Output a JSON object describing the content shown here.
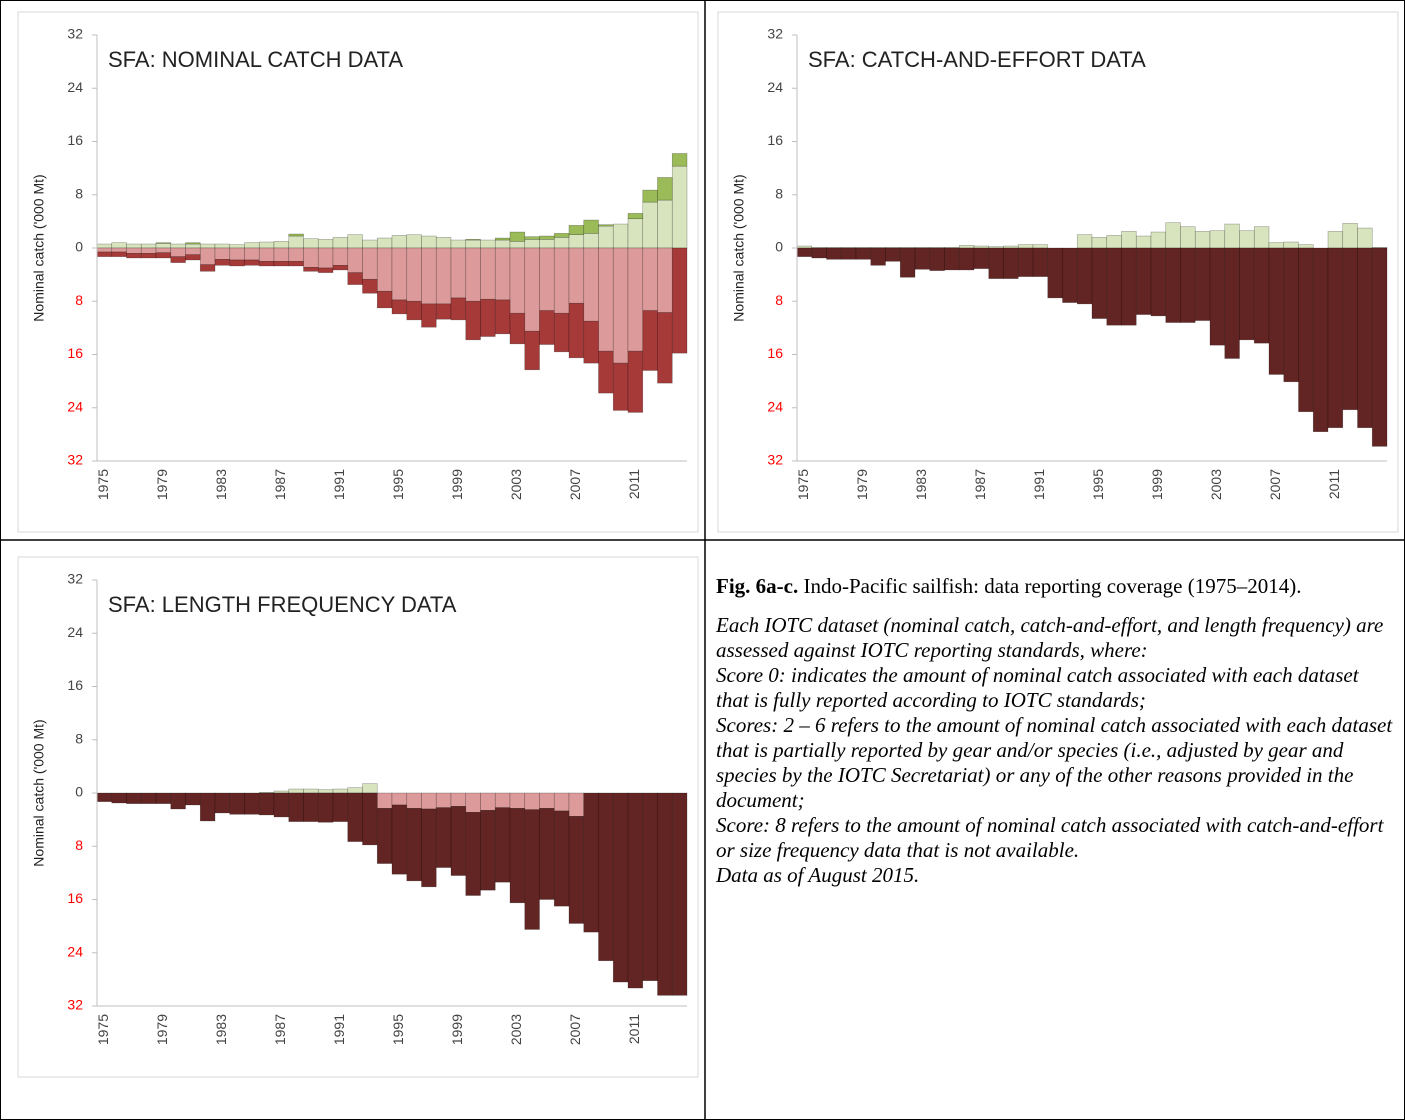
{
  "chart_data": [
    {
      "type": "bar",
      "title": "SFA: NOMINAL CATCH DATA",
      "y_label": "Nominal catch ('000 Mt)",
      "categories": [
        "1975",
        null,
        null,
        null,
        "1979",
        null,
        null,
        null,
        "1983",
        null,
        null,
        null,
        "1987",
        null,
        null,
        null,
        "1991",
        null,
        null,
        null,
        "1995",
        null,
        null,
        null,
        "1999",
        null,
        null,
        null,
        "2003",
        null,
        null,
        null,
        "2007",
        null,
        null,
        null,
        "2011",
        null,
        null,
        null
      ],
      "ylim": [
        -32,
        32
      ],
      "yticks": [
        {
          "value": -32,
          "label": "32"
        },
        {
          "value": -24,
          "label": "24"
        },
        {
          "value": -16,
          "label": "16"
        },
        {
          "value": -8,
          "label": "8"
        },
        0,
        8,
        16,
        24,
        32
      ],
      "negative_tick_color": "#ff0000",
      "stacked": true,
      "series": [
        {
          "color": "#d7e4bd",
          "values": [
            0.6,
            0.8,
            0.6,
            0.6,
            0.7,
            0.6,
            0.6,
            0.6,
            0.6,
            0.5,
            0.8,
            0.9,
            1.0,
            1.8,
            1.4,
            1.3,
            1.6,
            2.0,
            1.2,
            1.5,
            1.9,
            2.0,
            1.8,
            1.6,
            1.2,
            1.2,
            1.2,
            1.2,
            1.0,
            1.3,
            1.3,
            1.6,
            2.0,
            2.2,
            3.3,
            3.6,
            4.4,
            6.9,
            7.2,
            12.3
          ]
        },
        {
          "color": "#9bbb59",
          "values": [
            0,
            0,
            0,
            0,
            0.1,
            0,
            0.2,
            0,
            0,
            0,
            0,
            0,
            0,
            0.3,
            0,
            0,
            0,
            0,
            0,
            0,
            0,
            0,
            0,
            0,
            0,
            0.1,
            0,
            0.3,
            1.4,
            0.4,
            0.5,
            0.6,
            1.4,
            2.0,
            0.2,
            0,
            0.8,
            1.8,
            3.4,
            1.9
          ]
        },
        {
          "color": "#dc9a9a",
          "values": [
            -0.6,
            -0.6,
            -0.8,
            -0.8,
            -0.7,
            -1.3,
            -1.0,
            -2.5,
            -1.7,
            -1.8,
            -1.8,
            -2.0,
            -2.0,
            -2.0,
            -2.9,
            -3.0,
            -2.6,
            -3.7,
            -4.7,
            -6.5,
            -7.8,
            -8.0,
            -8.4,
            -8.4,
            -7.5,
            -8.0,
            -7.7,
            -7.8,
            -9.8,
            -12.5,
            -9.4,
            -9.8,
            -8.3,
            -11.0,
            -15.5,
            -17.3,
            -15.5,
            -9.4,
            -9.7,
            0
          ]
        },
        {
          "color": "#a63a38",
          "values": [
            -0.7,
            -0.7,
            -0.7,
            -0.7,
            -0.8,
            -0.9,
            -0.8,
            -1.0,
            -0.9,
            -0.9,
            -0.8,
            -0.7,
            -0.7,
            -0.7,
            -0.6,
            -0.7,
            -0.7,
            -1.8,
            -2.1,
            -2.5,
            -2.1,
            -2.8,
            -3.5,
            -2.3,
            -3.3,
            -5.8,
            -5.6,
            -5.1,
            -4.6,
            -5.8,
            -5.1,
            -5.8,
            -8.2,
            -6.3,
            -6.3,
            -7.1,
            -9.2,
            -9.0,
            -10.6,
            -15.8
          ]
        }
      ]
    },
    {
      "type": "bar",
      "title": "SFA: CATCH-AND-EFFORT DATA",
      "y_label": "Nominal catch ('000 Mt)",
      "categories": [
        "1975",
        null,
        null,
        null,
        "1979",
        null,
        null,
        null,
        "1983",
        null,
        null,
        null,
        "1987",
        null,
        null,
        null,
        "1991",
        null,
        null,
        null,
        "1995",
        null,
        null,
        null,
        "1999",
        null,
        null,
        null,
        "2003",
        null,
        null,
        null,
        "2007",
        null,
        null,
        null,
        "2011",
        null,
        null,
        null
      ],
      "ylim": [
        -32,
        32
      ],
      "yticks": [
        {
          "value": -32,
          "label": "32"
        },
        {
          "value": -24,
          "label": "24"
        },
        {
          "value": -16,
          "label": "16"
        },
        {
          "value": -8,
          "label": "8"
        },
        0,
        8,
        16,
        24,
        32
      ],
      "negative_tick_color": "#ff0000",
      "stacked": true,
      "series": [
        {
          "color": "#d7e4bd",
          "values": [
            0.3,
            0.1,
            0.1,
            0.1,
            0.1,
            0.1,
            0.1,
            0.1,
            0.1,
            0.1,
            0.1,
            0.4,
            0.3,
            0.2,
            0.3,
            0.5,
            0.5,
            0,
            0,
            2.0,
            1.6,
            1.9,
            2.5,
            1.8,
            2.4,
            3.8,
            3.2,
            2.5,
            2.6,
            3.6,
            2.6,
            3.2,
            0.8,
            0.9,
            0.5,
            0,
            2.5,
            3.7,
            3.0,
            0.1
          ]
        },
        {
          "color": "#632523",
          "values": [
            -1.3,
            -1.5,
            -1.7,
            -1.7,
            -1.7,
            -2.6,
            -2.0,
            -4.4,
            -3.2,
            -3.4,
            -3.3,
            -3.3,
            -3.1,
            -4.6,
            -4.6,
            -4.3,
            -4.3,
            -7.5,
            -8.2,
            -8.4,
            -10.6,
            -11.6,
            -11.6,
            -10.0,
            -10.2,
            -11.2,
            -11.2,
            -10.9,
            -14.6,
            -16.6,
            -13.8,
            -14.3,
            -19.0,
            -20.1,
            -24.6,
            -27.6,
            -27.0,
            -24.3,
            -27.0,
            -29.8
          ]
        }
      ]
    },
    {
      "type": "bar",
      "title": "SFA: LENGTH FREQUENCY DATA",
      "y_label": "Nominal catch ('000 Mt)",
      "categories": [
        "1975",
        null,
        null,
        null,
        "1979",
        null,
        null,
        null,
        "1983",
        null,
        null,
        null,
        "1987",
        null,
        null,
        null,
        "1991",
        null,
        null,
        null,
        "1995",
        null,
        null,
        null,
        "1999",
        null,
        null,
        null,
        "2003",
        null,
        null,
        null,
        "2007",
        null,
        null,
        null,
        "2011",
        null,
        null,
        null
      ],
      "ylim": [
        -32,
        32
      ],
      "yticks": [
        {
          "value": -32,
          "label": "32"
        },
        {
          "value": -24,
          "label": "24"
        },
        {
          "value": -16,
          "label": "16"
        },
        {
          "value": -8,
          "label": "8"
        },
        0,
        8,
        16,
        24,
        32
      ],
      "negative_tick_color": "#ff0000",
      "stacked": true,
      "series": [
        {
          "color": "#d7e4bd",
          "values": [
            0,
            0,
            0,
            0,
            0,
            0,
            0,
            0,
            0,
            0,
            0,
            0.1,
            0.3,
            0.6,
            0.6,
            0.5,
            0.6,
            0.8,
            1.4,
            0,
            0,
            0,
            0,
            0,
            0,
            0,
            0,
            0,
            0,
            0,
            0,
            0,
            0,
            0,
            0,
            0,
            0,
            0,
            0,
            0
          ]
        },
        {
          "color": "#dc9a9a",
          "values": [
            0,
            0,
            0,
            0,
            0,
            0,
            0,
            0,
            0,
            0,
            0,
            0,
            0,
            0,
            0,
            0,
            0,
            0,
            0,
            -2.3,
            -1.8,
            -2.3,
            -2.4,
            -2.2,
            -2.0,
            -2.9,
            -2.6,
            -2.2,
            -2.3,
            -2.5,
            -2.3,
            -2.7,
            -3.5,
            0,
            0,
            0,
            0,
            0,
            0,
            0
          ]
        },
        {
          "color": "#632523",
          "values": [
            -1.3,
            -1.5,
            -1.6,
            -1.6,
            -1.6,
            -2.4,
            -1.8,
            -4.2,
            -3.0,
            -3.2,
            -3.2,
            -3.3,
            -3.6,
            -4.3,
            -4.3,
            -4.4,
            -4.3,
            -7.3,
            -7.8,
            -8.3,
            -10.4,
            -10.9,
            -11.7,
            -9.0,
            -10.4,
            -12.5,
            -12.0,
            -11.2,
            -14.2,
            -18.0,
            -13.7,
            -14.3,
            -16.1,
            -20.9,
            -25.2,
            -28.4,
            -29.3,
            -28.2,
            -30.4,
            -30.4
          ]
        }
      ]
    }
  ],
  "caption": {
    "label": "Fig. 6a-c.",
    "title": "Indo-Pacific sailfish: data reporting coverage (1975–2014).",
    "paragraphs": [
      "Each IOTC dataset (nominal catch, catch-and-effort, and length frequency) are assessed against IOTC reporting standards, where:",
      "Score 0: indicates the amount of nominal catch associated with each dataset that is fully reported according to IOTC standards;",
      "Scores: 2 – 6 refers to the amount of nominal catch associated with each dataset that is partially reported by gear and/or species (i.e., adjusted by gear and species by the IOTC Secretariat) or any of the other reasons provided in the document;",
      "Score: 8 refers to the amount of nominal catch associated with catch-and-effort or size frequency data that is not available.",
      "Data as of August 2015."
    ]
  }
}
